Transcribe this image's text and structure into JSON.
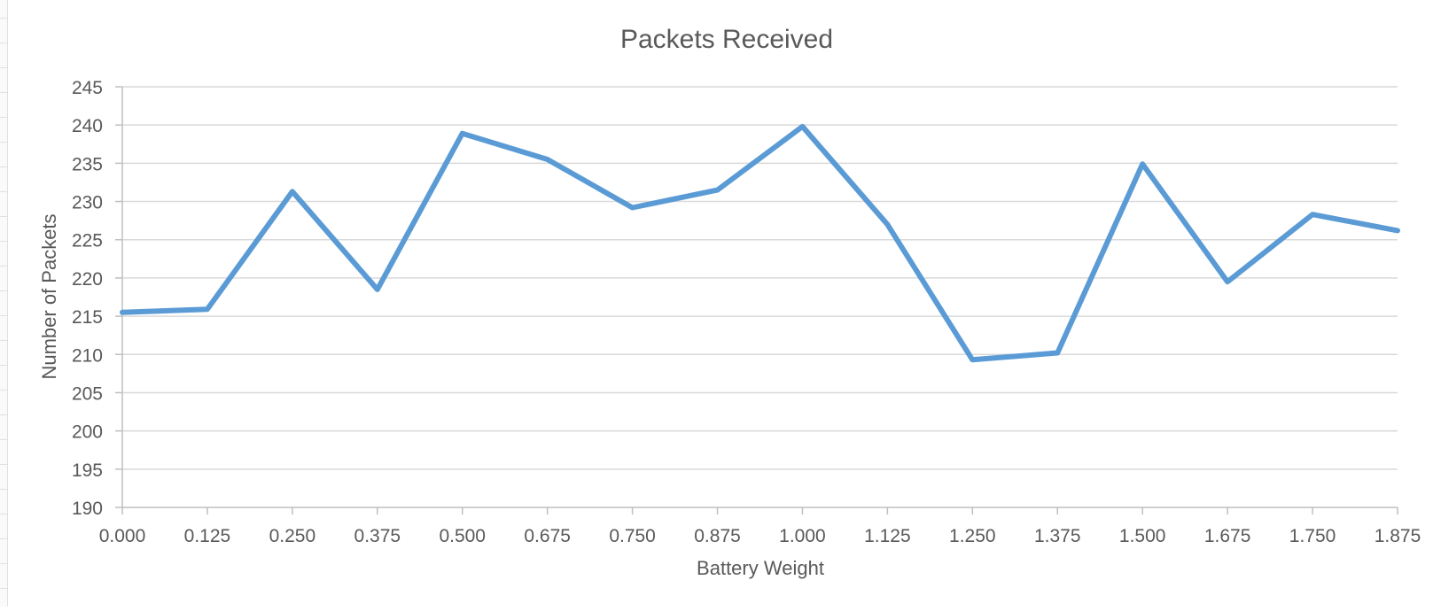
{
  "chart_data": {
    "type": "line",
    "title": "Packets Received",
    "xlabel": "Battery Weight",
    "ylabel": "Number of Packets",
    "categories": [
      "0.000",
      "0.125",
      "0.250",
      "0.375",
      "0.500",
      "0.675",
      "0.750",
      "0.875",
      "1.000",
      "1.125",
      "1.250",
      "1.375",
      "1.500",
      "1.675",
      "1.750",
      "1.875"
    ],
    "series": [
      {
        "values": [
          215.5,
          215.9,
          231.3,
          218.5,
          238.9,
          235.5,
          229.2,
          231.5,
          239.8,
          227.0,
          209.3,
          210.2,
          234.9,
          219.5,
          228.3,
          226.2
        ]
      }
    ],
    "ylim": [
      190,
      245
    ],
    "yticks": [
      190,
      195,
      200,
      205,
      210,
      215,
      220,
      225,
      230,
      235,
      240,
      245
    ],
    "grid": true,
    "legend": "none",
    "colors": {
      "line": "#5b9bd5",
      "grid": "#d9d9d9",
      "axis": "#bfbfbf",
      "text": "#595959"
    }
  }
}
